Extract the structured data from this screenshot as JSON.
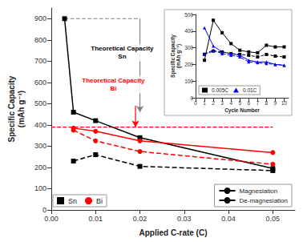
{
  "chart_data": [
    {
      "type": "line",
      "xlabel": "Applied C-rate (C)",
      "ylabel": "Specific Capacity\n(mAh g⁻¹)",
      "xlim": [
        0.0,
        0.055
      ],
      "xticks": [
        {
          "value": 0.0,
          "label": "0.00"
        },
        0.01,
        0.02,
        0.03,
        0.04,
        0.05
      ],
      "ylim": [
        0,
        950
      ],
      "yticks": [
        0,
        100,
        200,
        300,
        400,
        500,
        600,
        700,
        800,
        900
      ],
      "grid": false,
      "legend": "lower left",
      "series": [
        {
          "name": "Sn",
          "color": "black",
          "marker": "square",
          "line_style": "solid",
          "x": [
            0.003,
            0.005,
            0.01,
            0.02,
            0.05
          ],
          "values": [
            900,
            460,
            420,
            340,
            195
          ]
        },
        {
          "name": "Sn",
          "color": "black",
          "marker": "square",
          "line_style": "dashed",
          "x": [
            0.005,
            0.01,
            0.02,
            0.05
          ],
          "values": [
            230,
            260,
            205,
            185
          ]
        },
        {
          "name": "Bi",
          "color": "red",
          "marker": "circle",
          "line_style": "solid",
          "x": [
            0.005,
            0.01,
            0.02,
            0.05
          ],
          "values": [
            385,
            370,
            325,
            270
          ]
        },
        {
          "name": "Bi",
          "color": "red",
          "marker": "circle",
          "line_style": "dashed",
          "x": [
            0.005,
            0.01,
            0.02,
            0.05
          ],
          "values": [
            375,
            325,
            275,
            215
          ]
        }
      ],
      "style_legend": {
        "legend": "lower right",
        "entries": [
          {
            "name": "Magnesiation",
            "color": "black",
            "line_style": "solid"
          },
          {
            "name": "De-magnesiation",
            "color": "black",
            "line_style": "dashed"
          }
        ]
      },
      "lines": [
        {
          "x": [
            0.0,
            0.05
          ],
          "y": [
            390,
            390
          ],
          "color": "red",
          "line_style": "dashed"
        },
        {
          "x": [
            0.003,
            0.02
          ],
          "y": [
            900,
            900
          ],
          "color": "gray",
          "line_style": "dashed"
        },
        {
          "x": [
            0.02,
            0.02
          ],
          "y": [
            900,
            460
          ],
          "color": "gray",
          "line_style": "solid",
          "marker": "arrow"
        },
        {
          "x": [
            0.019,
            0.019
          ],
          "y": [
            490,
            390
          ],
          "color": "red",
          "line_style": "solid",
          "marker": "arrow"
        }
      ],
      "annotations": [
        {
          "text": "Theoretical Capacity\nSn",
          "x": 0.016,
          "y": 740,
          "color": "black"
        },
        {
          "text": "Theoretical Capacity\nBi",
          "x": 0.014,
          "y": 590,
          "color": "red"
        }
      ]
    },
    {
      "type": "line",
      "xlabel": "Cycle Number",
      "ylabel": "Specific Capacity\n(mAh g⁻¹)",
      "xlim": [
        0,
        10.5
      ],
      "xticks": [
        0,
        1,
        2,
        3,
        4,
        5,
        6,
        7,
        8,
        9,
        10
      ],
      "ylim": [
        0,
        500
      ],
      "yticks": [
        0,
        100,
        200,
        300,
        400,
        500
      ],
      "grid": false,
      "legend": "lower left",
      "series": [
        {
          "name": "0.005C",
          "color": "black",
          "marker": "square",
          "line_style": "solid",
          "x": [
            1,
            2,
            3,
            4,
            5,
            6,
            7,
            8,
            9,
            10
          ],
          "values": [
            225,
            465,
            390,
            325,
            285,
            275,
            270,
            315,
            305,
            305
          ]
        },
        {
          "name": "0.005C",
          "color": "black",
          "marker": "square",
          "line_style": "dashed",
          "x": [
            1,
            2,
            3,
            4,
            5,
            6,
            7,
            8,
            9,
            10
          ],
          "values": [
            260,
            280,
            275,
            265,
            260,
            255,
            245,
            260,
            250,
            245
          ]
        },
        {
          "name": "0.01C",
          "color": "blue",
          "marker": "triangle",
          "line_style": "solid",
          "x": [
            1,
            2,
            3,
            4,
            5,
            6,
            7,
            8,
            9,
            10
          ],
          "values": [
            420,
            310,
            275,
            265,
            255,
            225,
            215,
            215,
            200,
            195
          ]
        },
        {
          "name": "0.01C",
          "color": "blue",
          "marker": "triangle",
          "line_style": "dashed",
          "x": [
            1,
            2,
            3,
            4,
            5,
            6,
            7,
            8,
            9,
            10
          ],
          "values": [
            265,
            285,
            265,
            255,
            245,
            215,
            210,
            205,
            200,
            195
          ]
        }
      ]
    }
  ]
}
